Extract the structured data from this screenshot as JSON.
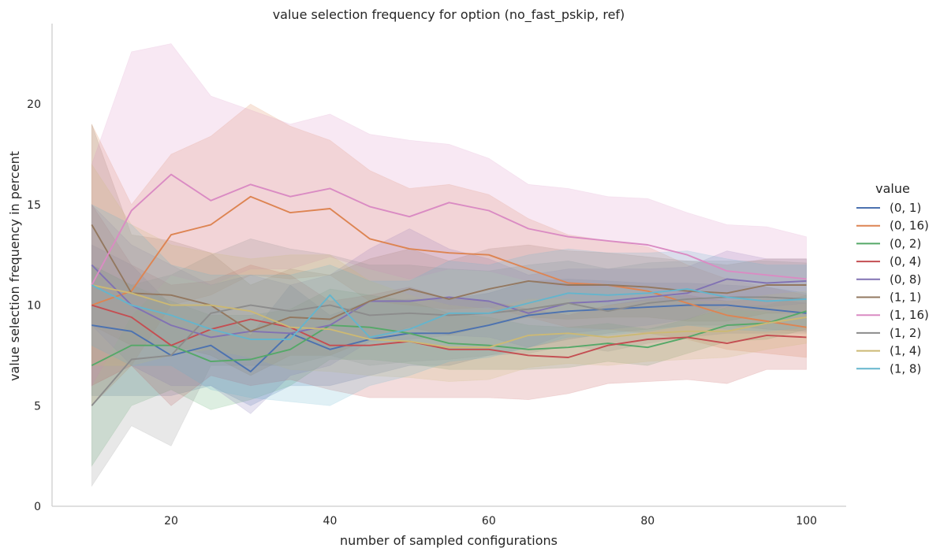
{
  "chart_data": {
    "type": "line",
    "title": "value selection frequency for option (no_fast_pskip, ref)",
    "xlabel": "number of sampled configurations",
    "ylabel": "value selection frequency in percent",
    "xlim": [
      5,
      105
    ],
    "ylim": [
      0,
      24
    ],
    "x_ticks": [
      20,
      40,
      60,
      80,
      100
    ],
    "y_ticks": [
      0,
      5,
      10,
      15,
      20
    ],
    "grid": false,
    "legend_title": "value",
    "legend_position": "right",
    "x": [
      10,
      15,
      20,
      25,
      30,
      35,
      40,
      45,
      50,
      55,
      60,
      65,
      70,
      75,
      80,
      85,
      90,
      95,
      100
    ],
    "series": [
      {
        "name": "(0, 1)",
        "color": "#4c72b0",
        "values": [
          9.0,
          8.7,
          7.5,
          8.0,
          6.7,
          8.6,
          7.8,
          8.3,
          8.6,
          8.6,
          9.0,
          9.5,
          9.7,
          9.8,
          9.9,
          10.0,
          10.0,
          9.8,
          9.6
        ],
        "lower": [
          5.5,
          5.5,
          5.5,
          6.0,
          5.0,
          6.0,
          6.0,
          6.5,
          7.0,
          7.0,
          7.5,
          7.9,
          8.3,
          8.6,
          8.8,
          9.0,
          9.0,
          8.8,
          8.7
        ],
        "upper": [
          13.0,
          12.0,
          10.0,
          10.0,
          8.5,
          11.0,
          9.5,
          10.2,
          10.3,
          10.3,
          10.6,
          11.2,
          11.3,
          11.2,
          11.1,
          11.1,
          11.0,
          10.9,
          10.6
        ]
      },
      {
        "name": "(0, 16)",
        "color": "#dd8452",
        "values": [
          10.0,
          10.7,
          13.5,
          14.0,
          15.4,
          14.6,
          14.8,
          13.3,
          12.8,
          12.6,
          12.5,
          11.8,
          11.1,
          11.0,
          10.7,
          10.1,
          9.5,
          9.2,
          8.9
        ],
        "lower": [
          5.0,
          7.0,
          10.0,
          10.5,
          11.5,
          11.3,
          11.5,
          10.2,
          10.0,
          9.8,
          9.9,
          9.4,
          8.9,
          8.8,
          8.6,
          8.3,
          7.8,
          7.6,
          7.4
        ],
        "upper": [
          19.0,
          15.0,
          17.5,
          18.4,
          20.0,
          18.9,
          18.2,
          16.7,
          15.8,
          16.0,
          15.5,
          14.3,
          13.5,
          13.2,
          12.9,
          12.0,
          11.3,
          10.9,
          10.5
        ]
      },
      {
        "name": "(0, 2)",
        "color": "#55a868",
        "values": [
          7.0,
          8.0,
          8.0,
          7.2,
          7.3,
          7.8,
          9.0,
          8.9,
          8.6,
          8.1,
          8.0,
          7.8,
          7.9,
          8.1,
          7.9,
          8.4,
          9.0,
          9.1,
          9.7
        ],
        "lower": [
          2.0,
          5.0,
          5.8,
          4.8,
          5.3,
          6.0,
          7.3,
          7.3,
          7.1,
          6.8,
          6.8,
          6.8,
          6.9,
          7.2,
          7.0,
          7.6,
          8.2,
          8.3,
          8.8
        ],
        "upper": [
          12.0,
          11.0,
          10.2,
          9.5,
          9.5,
          9.8,
          10.8,
          10.5,
          10.2,
          9.6,
          9.4,
          9.0,
          8.9,
          9.1,
          8.8,
          9.3,
          9.9,
          10.0,
          10.5
        ]
      },
      {
        "name": "(0, 4)",
        "color": "#c44e52",
        "values": [
          10.0,
          9.4,
          8.0,
          8.8,
          9.3,
          8.9,
          8.0,
          8.0,
          8.2,
          7.8,
          7.8,
          7.5,
          7.4,
          8.0,
          8.3,
          8.4,
          8.1,
          8.5,
          8.4
        ],
        "lower": [
          6.0,
          7.0,
          5.0,
          6.5,
          6.0,
          6.3,
          5.8,
          5.4,
          5.4,
          5.4,
          5.4,
          5.3,
          5.6,
          6.1,
          6.2,
          6.3,
          6.1,
          6.8,
          6.8
        ],
        "upper": [
          15.0,
          12.0,
          11.0,
          11.2,
          12.0,
          11.5,
          10.2,
          10.5,
          10.9,
          10.3,
          10.2,
          9.8,
          9.5,
          10.0,
          10.3,
          10.5,
          10.2,
          10.3,
          10.1
        ]
      },
      {
        "name": "(0, 8)",
        "color": "#8172b3",
        "values": [
          12.0,
          10.0,
          9.0,
          8.4,
          8.7,
          8.6,
          9.0,
          10.2,
          10.2,
          10.4,
          10.2,
          9.6,
          10.1,
          10.2,
          10.4,
          10.6,
          11.3,
          11.1,
          11.2
        ],
        "lower": [
          9.0,
          7.0,
          6.0,
          6.0,
          4.6,
          6.5,
          7.0,
          8.2,
          8.3,
          8.5,
          8.4,
          7.9,
          8.6,
          8.8,
          9.0,
          9.3,
          10.0,
          9.9,
          10.1
        ],
        "upper": [
          15.0,
          13.0,
          12.0,
          11.0,
          11.5,
          11.0,
          11.5,
          12.8,
          13.8,
          12.8,
          12.3,
          11.5,
          11.8,
          11.8,
          11.8,
          11.9,
          12.7,
          12.3,
          12.3
        ]
      },
      {
        "name": "(1, 1)",
        "color": "#937860",
        "values": [
          14.0,
          10.6,
          10.5,
          10.0,
          8.7,
          9.4,
          9.3,
          10.2,
          10.8,
          10.3,
          10.8,
          11.2,
          11.0,
          11.0,
          10.9,
          10.7,
          10.6,
          11.0,
          11.0
        ],
        "lower": [
          9.0,
          8.0,
          8.0,
          7.5,
          6.5,
          7.5,
          7.5,
          8.3,
          8.9,
          8.5,
          9.0,
          9.4,
          9.3,
          9.4,
          9.4,
          9.2,
          9.2,
          9.6,
          9.6
        ],
        "upper": [
          19.0,
          13.5,
          13.2,
          12.6,
          11.0,
          11.8,
          11.5,
          12.3,
          12.8,
          12.2,
          12.8,
          13.0,
          12.7,
          12.6,
          12.4,
          12.2,
          12.0,
          12.3,
          12.3
        ]
      },
      {
        "name": "(1, 16)",
        "color": "#da8bc3",
        "values": [
          11.0,
          14.7,
          16.5,
          15.2,
          16.0,
          15.4,
          15.8,
          14.9,
          14.4,
          15.1,
          14.7,
          13.8,
          13.4,
          13.2,
          13.0,
          12.5,
          11.7,
          11.5,
          11.3
        ],
        "lower": [
          6.0,
          9.5,
          11.5,
          11.0,
          11.8,
          11.8,
          12.4,
          11.8,
          11.3,
          11.8,
          11.7,
          11.2,
          10.9,
          10.9,
          10.8,
          10.4,
          9.8,
          9.7,
          9.5
        ],
        "upper": [
          17.0,
          22.6,
          23.0,
          20.4,
          19.7,
          19.0,
          19.5,
          18.5,
          18.2,
          18.0,
          17.3,
          16.0,
          15.8,
          15.4,
          15.3,
          14.6,
          14.0,
          13.9,
          13.4
        ]
      },
      {
        "name": "(1, 2)",
        "color": "#8c8c8c",
        "values": [
          5.0,
          7.3,
          7.5,
          9.6,
          10.0,
          9.7,
          10.0,
          9.5,
          9.6,
          9.5,
          9.6,
          9.8,
          10.1,
          9.7,
          10.1,
          10.3,
          10.4,
          10.4,
          10.3
        ],
        "lower": [
          1.0,
          4.0,
          3.0,
          7.0,
          7.0,
          7.0,
          7.5,
          7.0,
          7.2,
          7.3,
          7.5,
          7.6,
          8.0,
          7.7,
          8.1,
          8.4,
          8.6,
          8.6,
          8.6
        ],
        "upper": [
          12.0,
          11.0,
          11.5,
          12.5,
          13.3,
          12.8,
          12.5,
          12.0,
          12.0,
          11.8,
          11.7,
          12.0,
          12.2,
          11.8,
          12.1,
          12.2,
          12.2,
          12.2,
          12.1
        ]
      },
      {
        "name": "(1, 4)",
        "color": "#ccb974",
        "values": [
          11.0,
          10.6,
          10.0,
          10.0,
          9.7,
          8.9,
          8.8,
          8.3,
          8.2,
          7.9,
          7.9,
          8.5,
          8.6,
          8.4,
          8.6,
          8.7,
          8.7,
          9.1,
          9.4
        ],
        "lower": [
          7.0,
          7.0,
          7.5,
          7.8,
          7.4,
          6.8,
          6.7,
          6.5,
          6.4,
          6.2,
          6.3,
          6.9,
          7.1,
          7.0,
          7.2,
          7.3,
          7.4,
          7.8,
          8.1
        ],
        "upper": [
          17.0,
          14.0,
          13.0,
          12.6,
          12.3,
          12.5,
          12.5,
          11.2,
          10.5,
          10.0,
          9.8,
          10.3,
          10.3,
          10.0,
          10.2,
          10.2,
          10.2,
          10.5,
          10.7
        ]
      },
      {
        "name": "(1, 8)",
        "color": "#64b5cd",
        "values": [
          11.0,
          10.0,
          9.5,
          8.8,
          8.3,
          8.3,
          10.5,
          8.4,
          8.8,
          9.6,
          9.6,
          10.1,
          10.6,
          10.5,
          10.6,
          10.8,
          10.4,
          10.2,
          10.3
        ],
        "lower": [
          8.0,
          7.0,
          7.0,
          5.8,
          5.4,
          5.2,
          5.0,
          6.0,
          6.5,
          7.2,
          7.4,
          7.9,
          8.4,
          8.5,
          8.7,
          9.0,
          8.8,
          8.7,
          8.9
        ],
        "upper": [
          15.0,
          14.0,
          12.0,
          11.5,
          11.5,
          11.5,
          12.0,
          11.2,
          11.2,
          12.2,
          12.0,
          12.5,
          12.8,
          12.6,
          12.6,
          12.7,
          12.3,
          12.0,
          12.0
        ]
      }
    ]
  }
}
